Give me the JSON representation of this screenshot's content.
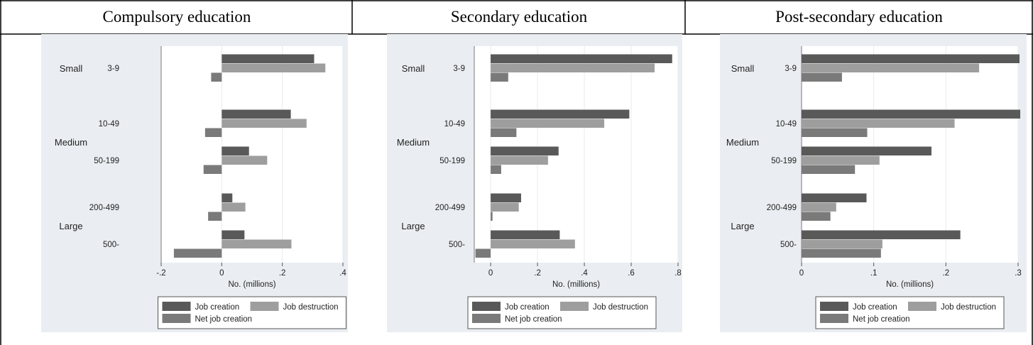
{
  "colors": {
    "job_creation": "#595959",
    "job_destruction": "#9e9e9e",
    "net_job_creation": "#7a7a7a",
    "panel_bg": "#eaeef2",
    "plot_bg": "#ffffff",
    "grid": "#e6ebef"
  },
  "legend": {
    "job_creation": "Job creation",
    "job_destruction": "Job destruction",
    "net_job_creation": "Net job creation"
  },
  "chart_data": [
    {
      "type": "bar",
      "orientation": "horizontal",
      "title": "Compulsory education",
      "xlabel": "No. (millions)",
      "xlim": [
        -0.2,
        0.4
      ],
      "xticks": [
        -0.2,
        0,
        0.2,
        0.4
      ],
      "xtick_labels": [
        "-.2",
        "0",
        ".2",
        ".4"
      ],
      "groups": [
        {
          "label": "Small",
          "categories": [
            "3-9"
          ]
        },
        {
          "label": "Medium",
          "categories": [
            "10-49",
            "50-199"
          ]
        },
        {
          "label": "Large",
          "categories": [
            "200-499",
            "500-"
          ]
        }
      ],
      "categories": [
        "3-9",
        "10-49",
        "50-199",
        "200-499",
        "500-"
      ],
      "series": [
        {
          "name": "Job creation",
          "values": [
            0.305,
            0.228,
            0.09,
            0.035,
            0.075
          ]
        },
        {
          "name": "Job destruction",
          "values": [
            0.342,
            0.28,
            0.15,
            0.078,
            0.23
          ]
        },
        {
          "name": "Net job creation",
          "values": [
            -0.035,
            -0.055,
            -0.06,
            -0.045,
            -0.158
          ]
        }
      ]
    },
    {
      "type": "bar",
      "orientation": "horizontal",
      "title": "Secondary education",
      "xlabel": "No. (millions)",
      "xlim": [
        -0.07,
        0.8
      ],
      "xticks": [
        0,
        0.2,
        0.4,
        0.6,
        0.8
      ],
      "xtick_labels": [
        "0",
        ".2",
        ".4",
        ".6",
        ".8"
      ],
      "groups": [
        {
          "label": "Small",
          "categories": [
            "3-9"
          ]
        },
        {
          "label": "Medium",
          "categories": [
            "10-49",
            "50-199"
          ]
        },
        {
          "label": "Large",
          "categories": [
            "200-499",
            "500-"
          ]
        }
      ],
      "categories": [
        "3-9",
        "10-49",
        "50-199",
        "200-499",
        "500-"
      ],
      "series": [
        {
          "name": "Job creation",
          "values": [
            0.775,
            0.592,
            0.29,
            0.13,
            0.295
          ]
        },
        {
          "name": "Job destruction",
          "values": [
            0.7,
            0.485,
            0.245,
            0.12,
            0.36
          ]
        },
        {
          "name": "Net job creation",
          "values": [
            0.075,
            0.11,
            0.045,
            0.008,
            -0.065
          ]
        }
      ]
    },
    {
      "type": "bar",
      "orientation": "horizontal",
      "title": "Post-secondary education",
      "xlabel": "No. (millions)",
      "xlim": [
        0,
        0.3
      ],
      "xticks": [
        0,
        0.1,
        0.2,
        0.3
      ],
      "xtick_labels": [
        "0",
        ".1",
        ".2",
        ".3"
      ],
      "groups": [
        {
          "label": "Small",
          "categories": [
            "3-9"
          ]
        },
        {
          "label": "Medium",
          "categories": [
            "10-49",
            "50-199"
          ]
        },
        {
          "label": "Large",
          "categories": [
            "200-499",
            "500-"
          ]
        }
      ],
      "categories": [
        "3-9",
        "10-49",
        "50-199",
        "200-499",
        "500-"
      ],
      "series": [
        {
          "name": "Job creation",
          "values": [
            0.302,
            0.303,
            0.18,
            0.09,
            0.22
          ]
        },
        {
          "name": "Job destruction",
          "values": [
            0.246,
            0.212,
            0.108,
            0.048,
            0.112
          ]
        },
        {
          "name": "Net job creation",
          "values": [
            0.056,
            0.091,
            0.074,
            0.04,
            0.11
          ]
        }
      ]
    }
  ]
}
